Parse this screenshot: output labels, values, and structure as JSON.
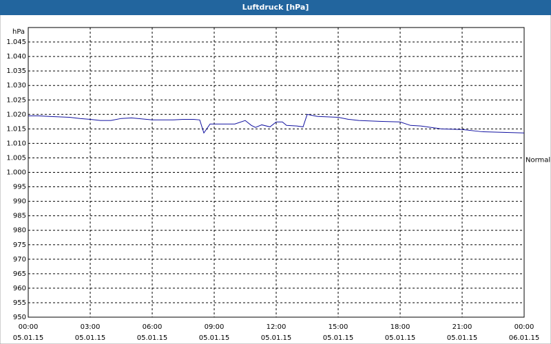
{
  "chart_data": {
    "type": "line",
    "title": "Luftdruck [hPa]",
    "y_unit": "hPa",
    "xlim": [
      0,
      24
    ],
    "xticks": [
      {
        "value": 0,
        "label": "00:00",
        "date": "05.01.15"
      },
      {
        "value": 3,
        "label": "03:00",
        "date": "05.01.15"
      },
      {
        "value": 6,
        "label": "06:00",
        "date": "05.01.15"
      },
      {
        "value": 9,
        "label": "09:00",
        "date": "05.01.15"
      },
      {
        "value": 12,
        "label": "12:00",
        "date": "05.01.15"
      },
      {
        "value": 15,
        "label": "15:00",
        "date": "05.01.15"
      },
      {
        "value": 18,
        "label": "18:00",
        "date": "05.01.15"
      },
      {
        "value": 21,
        "label": "21:00",
        "date": "05.01.15"
      },
      {
        "value": 24,
        "label": "00:00",
        "date": "06.01.15"
      }
    ],
    "ylim": [
      950,
      1050
    ],
    "yticks": [
      950,
      955,
      960,
      965,
      970,
      975,
      980,
      985,
      990,
      995,
      {
        "value": 1000,
        "label": "1.000"
      },
      {
        "value": 1005,
        "label": "1.005"
      },
      {
        "value": 1010,
        "label": "1.010"
      },
      {
        "value": 1015,
        "label": "1.015"
      },
      {
        "value": 1020,
        "label": "1.020"
      },
      {
        "value": 1025,
        "label": "1.025"
      },
      {
        "value": 1030,
        "label": "1.030"
      },
      {
        "value": 1035,
        "label": "1.035"
      },
      {
        "value": 1040,
        "label": "1.040"
      },
      {
        "value": 1045,
        "label": "1.045"
      }
    ],
    "grid": true,
    "reference": {
      "label": "Normal",
      "value": 1005
    },
    "x": [
      0,
      0.5,
      1,
      2,
      2.5,
      3,
      3.5,
      4,
      4.5,
      5,
      6,
      7,
      7.5,
      8,
      8.3,
      8.5,
      8.8,
      9,
      10,
      10.5,
      10.8,
      11,
      11.3,
      11.7,
      12,
      12.3,
      12.5,
      13,
      13.3,
      13.5,
      14,
      15,
      15.5,
      16,
      17,
      18,
      18.5,
      19,
      20,
      21,
      22,
      23,
      24
    ],
    "series": [
      {
        "color": "#1010a0",
        "values": [
          1019.5,
          1019.5,
          1019.3,
          1019,
          1018.6,
          1018.3,
          1017.9,
          1017.9,
          1018.6,
          1018.8,
          1018.1,
          1018.1,
          1018.3,
          1018.3,
          1018.1,
          1013.6,
          1016.7,
          1016.7,
          1016.7,
          1017.9,
          1016.2,
          1015.5,
          1016.4,
          1015.7,
          1017.4,
          1017.4,
          1016.2,
          1016,
          1015.7,
          1020,
          1019.3,
          1019,
          1018.3,
          1017.9,
          1017.6,
          1017.4,
          1016.2,
          1016,
          1015,
          1014.8,
          1014,
          1013.8,
          1013.6
        ]
      }
    ]
  }
}
